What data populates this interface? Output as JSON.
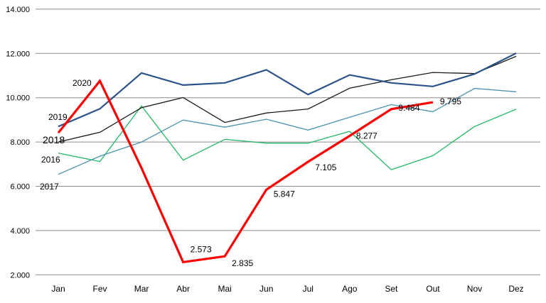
{
  "chart_data": {
    "type": "line",
    "title": "",
    "xlabel": "",
    "ylabel": "",
    "ylim": [
      2000,
      14000
    ],
    "yticks": [
      "2.000",
      "4.000",
      "6.000",
      "8.000",
      "10.000",
      "12.000",
      "14.000"
    ],
    "ytick_values": [
      2000,
      4000,
      6000,
      8000,
      10000,
      12000,
      14000
    ],
    "grid": "horizontal",
    "categories": [
      "Jan",
      "Fev",
      "Mar",
      "Abr",
      "Mai",
      "Jun",
      "Jul",
      "Ago",
      "Set",
      "Out",
      "Nov",
      "Dez"
    ],
    "series": [
      {
        "name": "2016",
        "color": "#22b866",
        "width": 1.3,
        "values": [
          7500,
          7120,
          9630,
          7180,
          8120,
          7950,
          7950,
          8480,
          6750,
          7380,
          8700,
          9480
        ]
      },
      {
        "name": "2017",
        "color": "#4b93ad",
        "width": 1.3,
        "values": [
          6540,
          7360,
          8000,
          8990,
          8670,
          9030,
          8540,
          9120,
          9690,
          9370,
          10420,
          10270
        ]
      },
      {
        "name": "2018",
        "color": "#1a1a1a",
        "width": 1.3,
        "values": [
          8000,
          8440,
          9550,
          10010,
          8880,
          9310,
          9490,
          10430,
          10810,
          11140,
          11090,
          11870
        ]
      },
      {
        "name": "2019",
        "color": "#2c5289",
        "width": 2.2,
        "values": [
          8700,
          9500,
          11120,
          10570,
          10670,
          11260,
          10140,
          11030,
          10670,
          10510,
          11070,
          12010
        ]
      },
      {
        "name": "2020",
        "color": "#ff0000",
        "width": 3.2,
        "values": [
          8410,
          10760,
          6820,
          2573,
          2835,
          5847,
          7105,
          8277,
          9484,
          9795,
          null,
          null
        ],
        "data_labels": [
          null,
          null,
          null,
          "2.573",
          "2.835",
          "5.847",
          "7.105",
          "8.277",
          "9.484",
          "9.795",
          null,
          null
        ]
      }
    ]
  }
}
